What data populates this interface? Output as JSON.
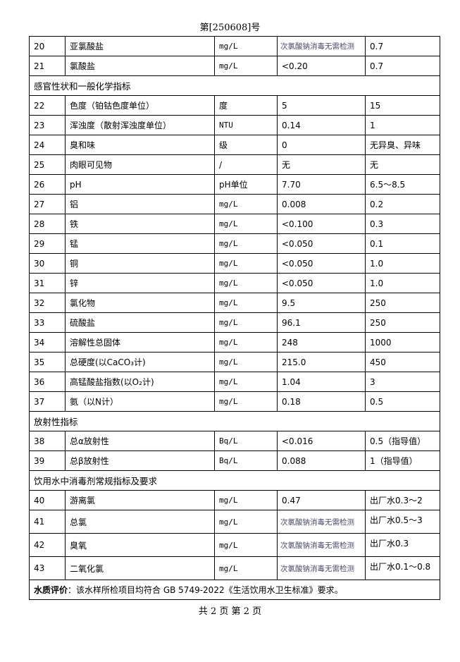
{
  "header": "第[250608]号",
  "rows": [
    {
      "type": "row",
      "no": "20",
      "item": "亚氯酸盐",
      "unit": "mg/L",
      "result": "次氯酸钠消毒无需检测",
      "limit": "0.7"
    },
    {
      "type": "row",
      "no": "21",
      "item": "氯酸盐",
      "unit": "mg/L",
      "result": "<0.20",
      "limit": "0.7"
    },
    {
      "type": "section",
      "title": "感官性状和一般化学指标"
    },
    {
      "type": "row",
      "no": "22",
      "item": "色度（铂钴色度单位）",
      "unit": "度",
      "result": "5",
      "limit": "15"
    },
    {
      "type": "row",
      "no": "23",
      "item": "浑浊度（散射浑浊度单位）",
      "unit": "NTU",
      "result": "0.14",
      "limit": "1"
    },
    {
      "type": "row",
      "no": "24",
      "item": "臭和味",
      "unit": "级",
      "result": "0",
      "limit": "无异臭、异味"
    },
    {
      "type": "row",
      "no": "25",
      "item": "肉眼可见物",
      "unit": "/",
      "result": "无",
      "limit": "无"
    },
    {
      "type": "row",
      "no": "26",
      "item": "pH",
      "unit": "pH单位",
      "result": "7.70",
      "limit": "6.5～8.5"
    },
    {
      "type": "row",
      "no": "27",
      "item": "铝",
      "unit": "mg/L",
      "result": "0.008",
      "limit": "0.2"
    },
    {
      "type": "row",
      "no": "28",
      "item": "铁",
      "unit": "mg/L",
      "result": "<0.100",
      "limit": "0.3"
    },
    {
      "type": "row",
      "no": "29",
      "item": "锰",
      "unit": "mg/L",
      "result": "<0.050",
      "limit": "0.1"
    },
    {
      "type": "row",
      "no": "30",
      "item": "铜",
      "unit": "mg/L",
      "result": "<0.050",
      "limit": "1.0"
    },
    {
      "type": "row",
      "no": "31",
      "item": "锌",
      "unit": "mg/L",
      "result": "<0.050",
      "limit": "1.0"
    },
    {
      "type": "row",
      "no": "32",
      "item": "氯化物",
      "unit": "mg/L",
      "result": "9.5",
      "limit": "250"
    },
    {
      "type": "row",
      "no": "33",
      "item": "硫酸盐",
      "unit": "mg/L",
      "result": "96.1",
      "limit": "250"
    },
    {
      "type": "row",
      "no": "34",
      "item": "溶解性总固体",
      "unit": "mg/L",
      "result": "248",
      "limit": "1000"
    },
    {
      "type": "row",
      "no": "35",
      "item": "总硬度(以CaCO₃计)",
      "unit": "mg/L",
      "result": "215.0",
      "limit": "450"
    },
    {
      "type": "row",
      "no": "36",
      "item": "高锰酸盐指数(以O₂计)",
      "unit": "mg/L",
      "result": "1.04",
      "limit": "3"
    },
    {
      "type": "row",
      "no": "37",
      "item": "氨（以N计）",
      "unit": "mg/L",
      "result": "0.18",
      "limit": "0.5"
    },
    {
      "type": "section",
      "title": "放射性指标"
    },
    {
      "type": "row",
      "no": "38",
      "item": "总α放射性",
      "unit": "Bq/L",
      "result": "<0.016",
      "limit": "0.5（指导值）"
    },
    {
      "type": "row",
      "no": "39",
      "item": "总β放射性",
      "unit": "Bq/L",
      "result": "0.088",
      "limit": "1（指导值）"
    },
    {
      "type": "section",
      "title": "饮用水中消毒剂常规指标及要求"
    },
    {
      "type": "row",
      "no": "40",
      "item": "游离氯",
      "unit": "mg/L",
      "result": "0.47",
      "limit": "出厂水0.3～2"
    },
    {
      "type": "row",
      "no": "41",
      "item": "总氯",
      "unit": "mg/L",
      "result": "次氯酸钠消毒无需检测",
      "limit": "出厂水0.5～3"
    },
    {
      "type": "row",
      "no": "42",
      "item": "臭氧",
      "unit": "mg/L",
      "result": "次氯酸钠消毒无需检测",
      "limit": "出厂水0.3"
    },
    {
      "type": "row",
      "no": "43",
      "item": "二氧化氯",
      "unit": "mg/L",
      "result": "次氯酸钠消毒无需检测",
      "limit": "出厂水0.1～0.8"
    }
  ],
  "evaluation": {
    "label": "水质评价",
    "text": "：该水样所检项目均符合 GB  5749-2022《生活饮用水卫生标准》要求。"
  },
  "footer": "共 2 页  第 2 页"
}
